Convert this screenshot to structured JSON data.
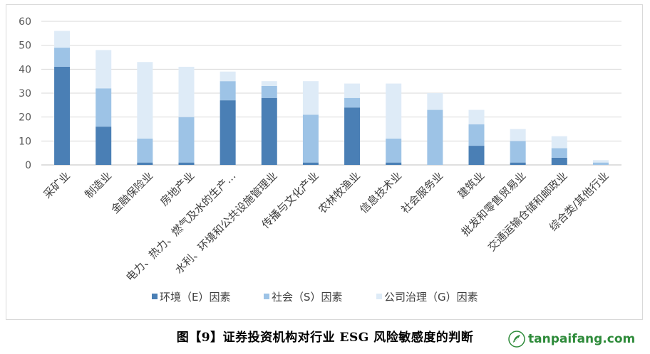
{
  "chart_data": {
    "type": "bar",
    "stacked": true,
    "categories": [
      "采矿业",
      "制造业",
      "金融保险业",
      "房地产业",
      "电力、热力、燃气及水的生产…",
      "水利、环境和公共设施管理业",
      "传播与文化产业",
      "农林牧渔业",
      "信息技术业",
      "社会服务业",
      "建筑业",
      "批发和零售贸易业",
      "交通运输仓储和邮政业",
      "综合类/其他行业"
    ],
    "series": [
      {
        "name": "环境（E）因素",
        "color": "#4a7fb5",
        "values": [
          41,
          16,
          1,
          1,
          27,
          28,
          1,
          24,
          1,
          0,
          8,
          1,
          3,
          0
        ]
      },
      {
        "name": "社会（S）因素",
        "color": "#9dc3e6",
        "values": [
          8,
          16,
          10,
          19,
          8,
          5,
          20,
          4,
          10,
          23,
          9,
          9,
          4,
          1
        ]
      },
      {
        "name": "公司治理（G）因素",
        "color": "#deebf7",
        "values": [
          7,
          16,
          32,
          21,
          4,
          2,
          14,
          6,
          23,
          7,
          6,
          5,
          5,
          1
        ]
      }
    ],
    "yticks": [
      0,
      10,
      20,
      30,
      40,
      50,
      60
    ],
    "ylim": [
      0,
      60
    ],
    "grid": true,
    "legend": "bottom"
  },
  "caption": "图【9】证券投资机构对行业 ESG 风险敏感度的判断",
  "watermark": {
    "text": "tanpaifang.com",
    "color": "#2e8b3a"
  }
}
